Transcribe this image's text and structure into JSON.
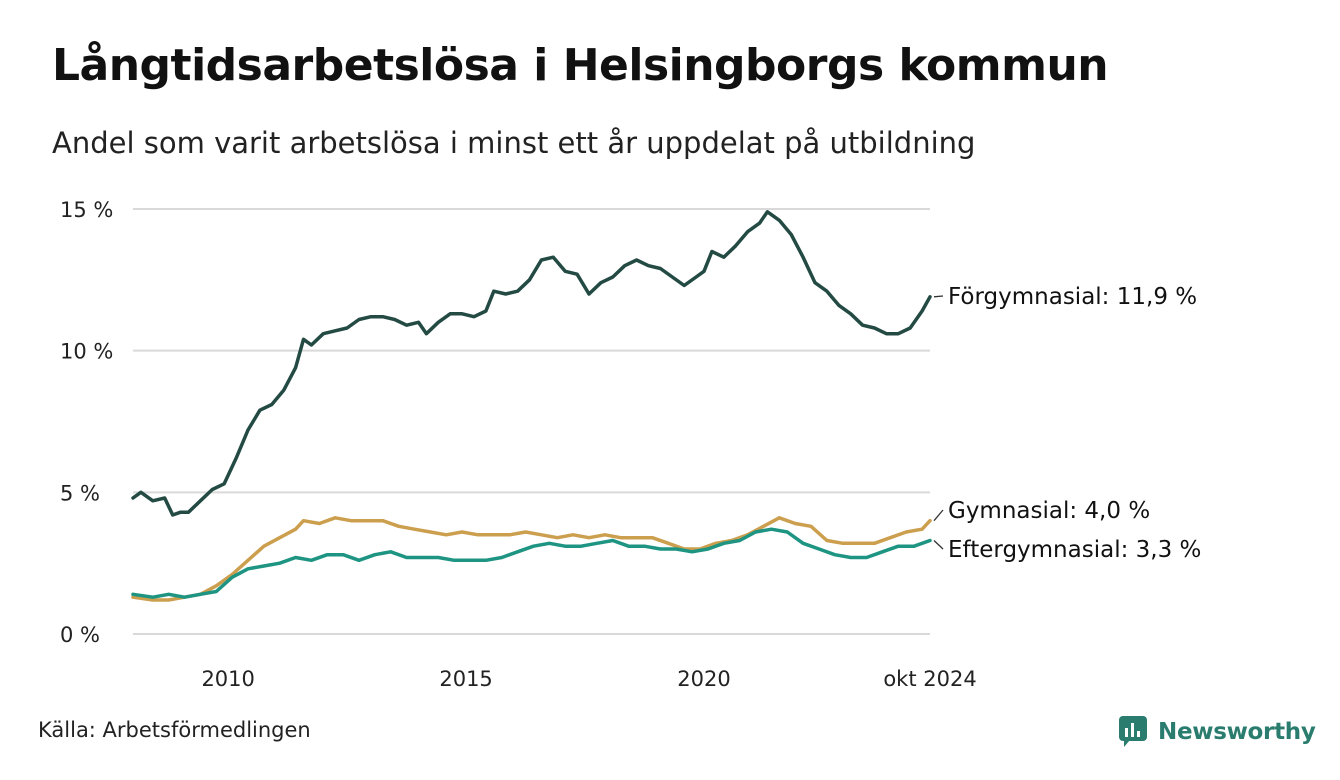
{
  "title": "Långtidsarbetslösa i Helsingborgs kommun",
  "subtitle": "Andel som varit arbetslösa i minst ett år uppdelat på utbildning",
  "source": "Källa: Arbetsförmedlingen",
  "brand": {
    "name": "Newsworthy",
    "icon": "newsworthy-logo-icon",
    "color": "#2a7d6e"
  },
  "chart_data": {
    "type": "line",
    "title": "Långtidsarbetslösa i Helsingborgs kommun",
    "subtitle": "Andel som varit arbetslösa i minst ett år uppdelat på utbildning",
    "xlim": [
      "2008-01",
      "2024-10"
    ],
    "ylim": [
      0,
      15
    ],
    "y_ticks": [
      {
        "value": 0,
        "label": "0 %"
      },
      {
        "value": 5,
        "label": "5 %"
      },
      {
        "value": 10,
        "label": "10 %"
      },
      {
        "value": 15,
        "label": "15 %"
      }
    ],
    "x_ticks": [
      {
        "value": "2010-01",
        "label": "2010"
      },
      {
        "value": "2015-01",
        "label": "2015"
      },
      {
        "value": "2020-01",
        "label": "2020"
      },
      {
        "value": "2024-10",
        "label": "okt 2024"
      }
    ],
    "grid": "horizontal",
    "series": [
      {
        "name": "Förgymnasial",
        "color": "#244a44",
        "end_label": "Förgymnasial: 11,9 %",
        "points": [
          [
            "2008-01",
            4.8
          ],
          [
            "2008-03",
            5.0
          ],
          [
            "2008-06",
            4.7
          ],
          [
            "2008-09",
            4.8
          ],
          [
            "2008-11",
            4.2
          ],
          [
            "2009-01",
            4.3
          ],
          [
            "2009-03",
            4.3
          ],
          [
            "2009-06",
            4.7
          ],
          [
            "2009-09",
            5.1
          ],
          [
            "2009-12",
            5.3
          ],
          [
            "2010-03",
            6.2
          ],
          [
            "2010-06",
            7.2
          ],
          [
            "2010-09",
            7.9
          ],
          [
            "2010-12",
            8.1
          ],
          [
            "2011-03",
            8.6
          ],
          [
            "2011-06",
            9.4
          ],
          [
            "2011-08",
            10.4
          ],
          [
            "2011-10",
            10.2
          ],
          [
            "2012-01",
            10.6
          ],
          [
            "2012-04",
            10.7
          ],
          [
            "2012-07",
            10.8
          ],
          [
            "2012-10",
            11.1
          ],
          [
            "2013-01",
            11.2
          ],
          [
            "2013-04",
            11.2
          ],
          [
            "2013-07",
            11.1
          ],
          [
            "2013-10",
            10.9
          ],
          [
            "2014-01",
            11.0
          ],
          [
            "2014-03",
            10.6
          ],
          [
            "2014-06",
            11.0
          ],
          [
            "2014-09",
            11.3
          ],
          [
            "2014-12",
            11.3
          ],
          [
            "2015-03",
            11.2
          ],
          [
            "2015-06",
            11.4
          ],
          [
            "2015-08",
            12.1
          ],
          [
            "2015-11",
            12.0
          ],
          [
            "2016-02",
            12.1
          ],
          [
            "2016-05",
            12.5
          ],
          [
            "2016-08",
            13.2
          ],
          [
            "2016-11",
            13.3
          ],
          [
            "2017-02",
            12.8
          ],
          [
            "2017-05",
            12.7
          ],
          [
            "2017-08",
            12.0
          ],
          [
            "2017-11",
            12.4
          ],
          [
            "2018-02",
            12.6
          ],
          [
            "2018-05",
            13.0
          ],
          [
            "2018-08",
            13.2
          ],
          [
            "2018-11",
            13.0
          ],
          [
            "2019-02",
            12.9
          ],
          [
            "2019-05",
            12.6
          ],
          [
            "2019-08",
            12.3
          ],
          [
            "2019-11",
            12.6
          ],
          [
            "2020-01",
            12.8
          ],
          [
            "2020-03",
            13.5
          ],
          [
            "2020-06",
            13.3
          ],
          [
            "2020-09",
            13.7
          ],
          [
            "2020-12",
            14.2
          ],
          [
            "2021-03",
            14.5
          ],
          [
            "2021-05",
            14.9
          ],
          [
            "2021-08",
            14.6
          ],
          [
            "2021-11",
            14.1
          ],
          [
            "2022-02",
            13.3
          ],
          [
            "2022-05",
            12.4
          ],
          [
            "2022-08",
            12.1
          ],
          [
            "2022-11",
            11.6
          ],
          [
            "2023-02",
            11.3
          ],
          [
            "2023-05",
            10.9
          ],
          [
            "2023-08",
            10.8
          ],
          [
            "2023-11",
            10.6
          ],
          [
            "2024-02",
            10.6
          ],
          [
            "2024-05",
            10.8
          ],
          [
            "2024-08",
            11.4
          ],
          [
            "2024-10",
            11.9
          ]
        ]
      },
      {
        "name": "Gymnasial",
        "color": "#cc9f4e",
        "end_label": "Gymnasial:  4,0 %",
        "points": [
          [
            "2008-01",
            1.3
          ],
          [
            "2008-06",
            1.2
          ],
          [
            "2008-10",
            1.2
          ],
          [
            "2009-02",
            1.3
          ],
          [
            "2009-06",
            1.4
          ],
          [
            "2009-10",
            1.7
          ],
          [
            "2010-02",
            2.1
          ],
          [
            "2010-06",
            2.6
          ],
          [
            "2010-10",
            3.1
          ],
          [
            "2011-02",
            3.4
          ],
          [
            "2011-06",
            3.7
          ],
          [
            "2011-08",
            4.0
          ],
          [
            "2011-12",
            3.9
          ],
          [
            "2012-04",
            4.1
          ],
          [
            "2012-08",
            4.0
          ],
          [
            "2012-12",
            4.0
          ],
          [
            "2013-04",
            4.0
          ],
          [
            "2013-08",
            3.8
          ],
          [
            "2013-12",
            3.7
          ],
          [
            "2014-04",
            3.6
          ],
          [
            "2014-08",
            3.5
          ],
          [
            "2014-12",
            3.6
          ],
          [
            "2015-04",
            3.5
          ],
          [
            "2015-08",
            3.5
          ],
          [
            "2015-12",
            3.5
          ],
          [
            "2016-04",
            3.6
          ],
          [
            "2016-08",
            3.5
          ],
          [
            "2016-12",
            3.4
          ],
          [
            "2017-04",
            3.5
          ],
          [
            "2017-08",
            3.4
          ],
          [
            "2017-12",
            3.5
          ],
          [
            "2018-04",
            3.4
          ],
          [
            "2018-08",
            3.4
          ],
          [
            "2018-12",
            3.4
          ],
          [
            "2019-04",
            3.2
          ],
          [
            "2019-08",
            3.0
          ],
          [
            "2019-12",
            3.0
          ],
          [
            "2020-04",
            3.2
          ],
          [
            "2020-08",
            3.3
          ],
          [
            "2020-12",
            3.5
          ],
          [
            "2021-04",
            3.8
          ],
          [
            "2021-08",
            4.1
          ],
          [
            "2021-12",
            3.9
          ],
          [
            "2022-04",
            3.8
          ],
          [
            "2022-08",
            3.3
          ],
          [
            "2022-12",
            3.2
          ],
          [
            "2023-04",
            3.2
          ],
          [
            "2023-08",
            3.2
          ],
          [
            "2023-12",
            3.4
          ],
          [
            "2024-04",
            3.6
          ],
          [
            "2024-08",
            3.7
          ],
          [
            "2024-10",
            4.0
          ]
        ]
      },
      {
        "name": "Eftergymnasial",
        "color": "#1e9482",
        "end_label": "Eftergymnasial:  3,3 %",
        "points": [
          [
            "2008-01",
            1.4
          ],
          [
            "2008-06",
            1.3
          ],
          [
            "2008-10",
            1.4
          ],
          [
            "2009-02",
            1.3
          ],
          [
            "2009-06",
            1.4
          ],
          [
            "2009-10",
            1.5
          ],
          [
            "2010-02",
            2.0
          ],
          [
            "2010-06",
            2.3
          ],
          [
            "2010-10",
            2.4
          ],
          [
            "2011-02",
            2.5
          ],
          [
            "2011-06",
            2.7
          ],
          [
            "2011-10",
            2.6
          ],
          [
            "2012-02",
            2.8
          ],
          [
            "2012-06",
            2.8
          ],
          [
            "2012-10",
            2.6
          ],
          [
            "2013-02",
            2.8
          ],
          [
            "2013-06",
            2.9
          ],
          [
            "2013-10",
            2.7
          ],
          [
            "2014-02",
            2.7
          ],
          [
            "2014-06",
            2.7
          ],
          [
            "2014-10",
            2.6
          ],
          [
            "2015-02",
            2.6
          ],
          [
            "2015-06",
            2.6
          ],
          [
            "2015-10",
            2.7
          ],
          [
            "2016-02",
            2.9
          ],
          [
            "2016-06",
            3.1
          ],
          [
            "2016-10",
            3.2
          ],
          [
            "2017-02",
            3.1
          ],
          [
            "2017-06",
            3.1
          ],
          [
            "2017-10",
            3.2
          ],
          [
            "2018-02",
            3.3
          ],
          [
            "2018-06",
            3.1
          ],
          [
            "2018-10",
            3.1
          ],
          [
            "2019-02",
            3.0
          ],
          [
            "2019-06",
            3.0
          ],
          [
            "2019-10",
            2.9
          ],
          [
            "2020-02",
            3.0
          ],
          [
            "2020-06",
            3.2
          ],
          [
            "2020-10",
            3.3
          ],
          [
            "2021-02",
            3.6
          ],
          [
            "2021-06",
            3.7
          ],
          [
            "2021-10",
            3.6
          ],
          [
            "2022-02",
            3.2
          ],
          [
            "2022-06",
            3.0
          ],
          [
            "2022-10",
            2.8
          ],
          [
            "2023-02",
            2.7
          ],
          [
            "2023-06",
            2.7
          ],
          [
            "2023-10",
            2.9
          ],
          [
            "2024-02",
            3.1
          ],
          [
            "2024-06",
            3.1
          ],
          [
            "2024-10",
            3.3
          ]
        ]
      }
    ]
  }
}
